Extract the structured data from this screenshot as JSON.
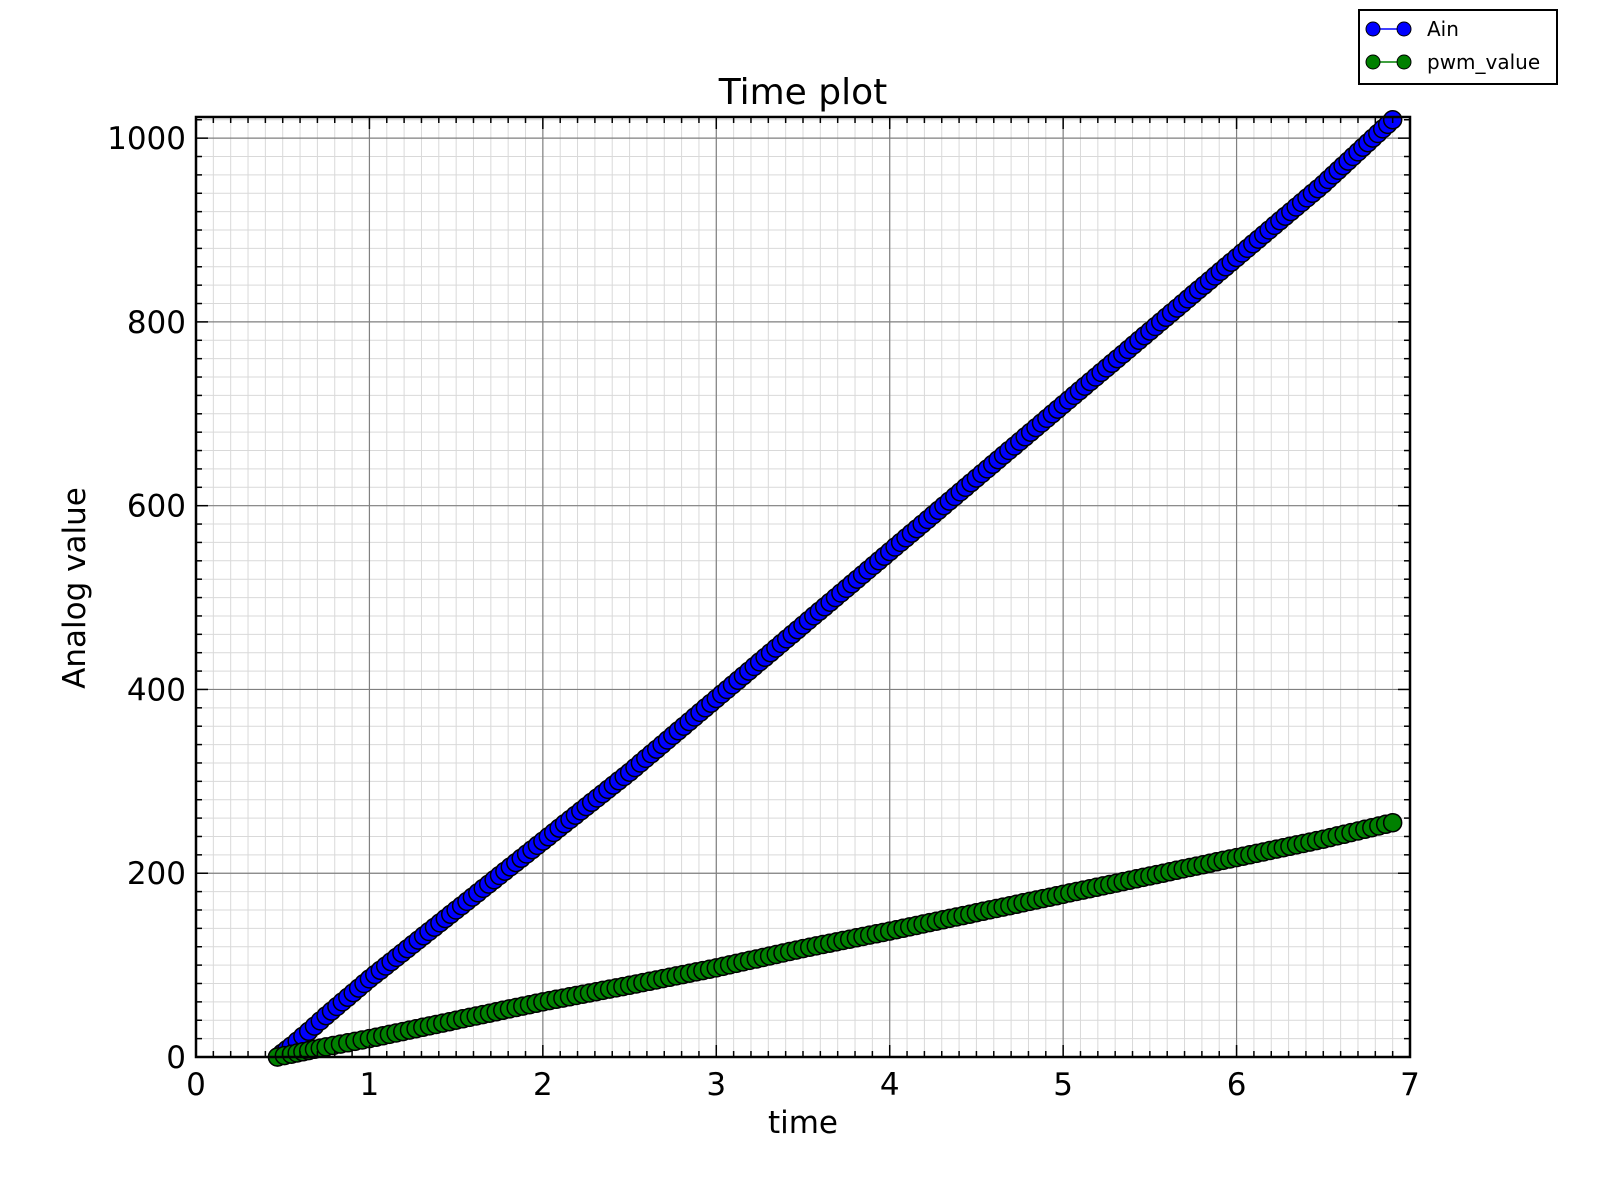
{
  "chart_data": {
    "type": "scatter",
    "title": "Time plot",
    "xlabel": "time",
    "ylabel": "Analog value",
    "xlim": [
      0,
      7
    ],
    "ylim": [
      0,
      1023
    ],
    "x_ticks": [
      0,
      1,
      2,
      3,
      4,
      5,
      6,
      7
    ],
    "x_tick_labels": [
      "0",
      "1",
      "2",
      "3",
      "4",
      "5",
      "6",
      "7"
    ],
    "y_ticks": [
      0,
      200,
      400,
      600,
      800,
      1000
    ],
    "y_tick_labels": [
      "0",
      "200",
      "400",
      "600",
      "800",
      "1000"
    ],
    "grid": true,
    "minor_grid": true,
    "legend_position": "above-top-right",
    "series": [
      {
        "name": "Ain",
        "color": "#0000ff",
        "marker": "circle",
        "x": [
          0.47,
          0.55,
          0.65,
          0.75,
          1.0,
          1.5,
          2.0,
          2.5,
          3.0,
          3.5,
          4.0,
          4.5,
          5.0,
          5.5,
          6.0,
          6.5,
          6.9
        ],
        "y": [
          0,
          12,
          28,
          45,
          85,
          160,
          235,
          310,
          390,
          470,
          550,
          630,
          710,
          790,
          870,
          950,
          1020
        ]
      },
      {
        "name": "pwm_value",
        "color": "#008000",
        "marker": "circle",
        "x": [
          0.47,
          0.55,
          0.65,
          0.75,
          1.0,
          1.5,
          2.0,
          2.5,
          3.0,
          3.5,
          4.0,
          4.5,
          5.0,
          5.5,
          6.0,
          6.5,
          6.9
        ],
        "y": [
          0,
          3,
          7,
          11,
          20,
          40,
          60,
          78,
          97,
          118,
          137,
          157,
          177,
          197,
          217,
          237,
          255
        ]
      }
    ]
  }
}
